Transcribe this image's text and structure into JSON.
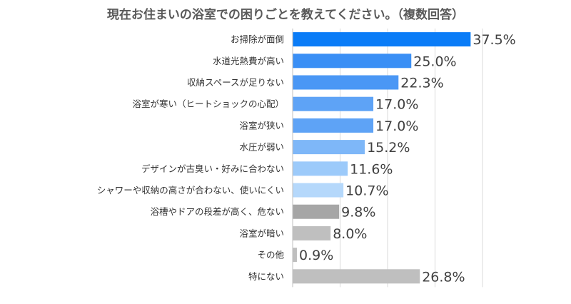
{
  "chart_data": {
    "type": "bar",
    "orientation": "horizontal",
    "title": "現在お住まいの浴室での困りごとを教えてください。（複数回答）",
    "categories": [
      "お掃除が面倒",
      "水道光熱費が高い",
      "収納スペースが足りない",
      "浴室が寒い（ヒートショックの心配）",
      "浴室が狭い",
      "水圧が弱い",
      "デザインが古臭い・好みに合わない",
      "シャワーや収納の高さが合わない、使いにくい",
      "浴槽やドアの段差が高く、危ない",
      "浴室が暗い",
      "その他",
      "特にない"
    ],
    "values": [
      37.5,
      25.0,
      22.3,
      17.0,
      17.0,
      15.2,
      11.6,
      10.7,
      9.8,
      8.0,
      0.9,
      26.8
    ],
    "value_labels": [
      "37.5%",
      "25.0%",
      "22.3%",
      "17.0%",
      "17.0%",
      "15.2%",
      "11.6%",
      "10.7%",
      "9.8%",
      "8.0%",
      "0.9%",
      "26.8%"
    ],
    "bar_colors": [
      "#0a7cf7",
      "#3a8ff5",
      "#4a97f5",
      "#5ea3f6",
      "#5ea3f6",
      "#7eb7f8",
      "#9ccafa",
      "#b5d8fb",
      "#a6a6a6",
      "#bfbfbf",
      "#bfbfbf",
      "#bfbfbf"
    ],
    "xlim": [
      0,
      40
    ],
    "grid": true
  }
}
